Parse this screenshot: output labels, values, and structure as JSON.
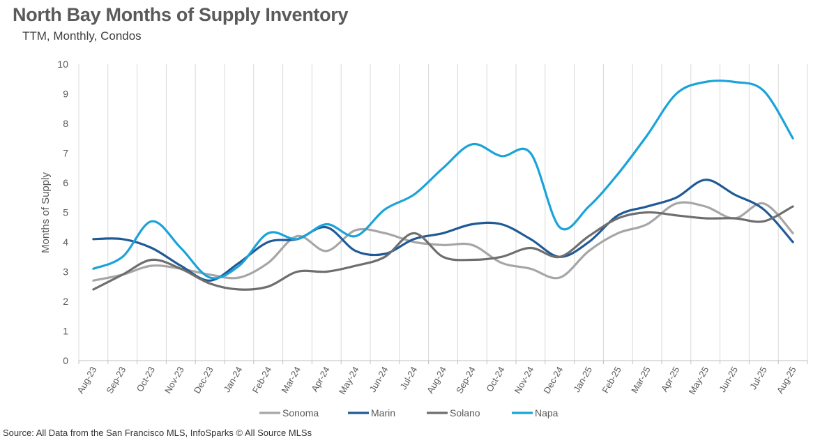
{
  "chart_data": {
    "type": "line",
    "title": "North Bay Months of Supply Inventory",
    "subtitle": "TTM, Monthly, Condos",
    "xlabel": "",
    "ylabel": "Months of Supply",
    "ylim": [
      0,
      10
    ],
    "yticks": [
      "0",
      "1",
      "2",
      "3",
      "4",
      "5",
      "6",
      "7",
      "8",
      "9",
      "10"
    ],
    "grid": "vertical",
    "legend_position": "bottom",
    "categories": [
      "Aug-23",
      "Sep-23",
      "Oct-23",
      "Nov-23",
      "Dec-23",
      "Jan-24",
      "Feb-24",
      "Mar-24",
      "Apr-24",
      "May-24",
      "Jun-24",
      "Jul-24",
      "Aug-24",
      "Sep-24",
      "Oct-24",
      "Nov-24",
      "Dec-24",
      "Jan-25",
      "Feb-25",
      "Mar-25",
      "Apr-25",
      "May-25",
      "Jun-25",
      "Jul-25",
      "Aug-25"
    ],
    "series": [
      {
        "name": "Sonoma",
        "color": "#a6a6a6",
        "values": [
          2.7,
          2.9,
          3.2,
          3.1,
          2.9,
          2.8,
          3.3,
          4.2,
          3.7,
          4.4,
          4.3,
          4.0,
          3.9,
          3.9,
          3.3,
          3.1,
          2.8,
          3.7,
          4.3,
          4.6,
          5.3,
          5.2,
          4.8,
          5.3,
          4.3
        ]
      },
      {
        "name": "Marin",
        "color": "#1f5a96",
        "values": [
          4.1,
          4.1,
          3.8,
          3.2,
          2.7,
          3.3,
          4.0,
          4.1,
          4.5,
          3.7,
          3.6,
          4.1,
          4.3,
          4.6,
          4.6,
          4.1,
          3.5,
          4.0,
          4.9,
          5.2,
          5.5,
          6.1,
          5.6,
          5.1,
          4.0
        ]
      },
      {
        "name": "Solano",
        "color": "#6e6e6e",
        "values": [
          2.4,
          2.9,
          3.4,
          3.1,
          2.6,
          2.4,
          2.5,
          3.0,
          3.0,
          3.2,
          3.5,
          4.3,
          3.5,
          3.4,
          3.5,
          3.8,
          3.5,
          4.2,
          4.8,
          5.0,
          4.9,
          4.8,
          4.8,
          4.7,
          5.2
        ]
      },
      {
        "name": "Napa",
        "color": "#1aa3d9",
        "values": [
          3.1,
          3.5,
          4.7,
          3.8,
          2.8,
          3.2,
          4.3,
          4.1,
          4.6,
          4.2,
          5.1,
          5.6,
          6.5,
          7.3,
          6.9,
          7.0,
          4.5,
          5.2,
          6.3,
          7.6,
          9.0,
          9.4,
          9.4,
          9.1,
          7.5
        ]
      }
    ],
    "source": "Source: All Data from the San Francisco MLS, InfoSparks © All Source MLSs"
  }
}
